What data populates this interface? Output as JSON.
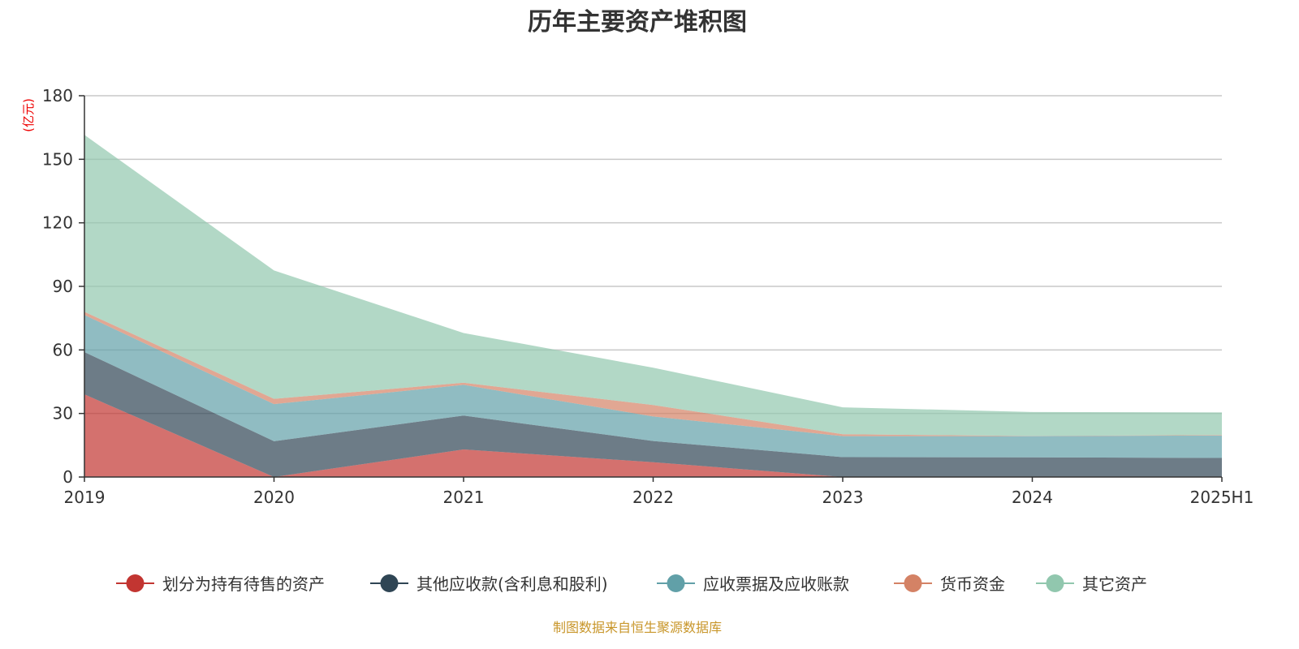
{
  "chart_data": {
    "type": "area",
    "stacked": true,
    "title": "历年主要资产堆积图",
    "ylabel": "(亿元)",
    "xlabel": "",
    "categories": [
      "2019",
      "2020",
      "2021",
      "2022",
      "2023",
      "2024",
      "2025H1"
    ],
    "ylim": [
      0,
      180
    ],
    "yticks": [
      0,
      30,
      60,
      90,
      120,
      150,
      180
    ],
    "grid": true,
    "legend_position": "bottom",
    "series": [
      {
        "name": "划分为持有待售的资产",
        "color": "#c23531",
        "values": [
          39,
          0,
          13,
          7,
          0,
          0,
          0
        ]
      },
      {
        "name": "其他应收款(含利息和股利)",
        "color": "#2f4554",
        "values": [
          20,
          16.9,
          16,
          10,
          9.4,
          9.3,
          9
        ]
      },
      {
        "name": "应收票据及应收账款",
        "color": "#61a0a8",
        "values": [
          17.5,
          17.5,
          14.5,
          11.6,
          9.9,
          10,
          10.6
        ]
      },
      {
        "name": "货币资金",
        "color": "#d48265",
        "values": [
          1.5,
          2.5,
          1,
          5.4,
          0.9,
          0.1,
          0.2
        ]
      },
      {
        "name": "其它资产",
        "color": "#91c7ae",
        "values": [
          83.5,
          60.6,
          23.5,
          17.6,
          12.7,
          11.3,
          10.7
        ]
      }
    ],
    "source": "制图数据来自恒生聚源数据库"
  }
}
